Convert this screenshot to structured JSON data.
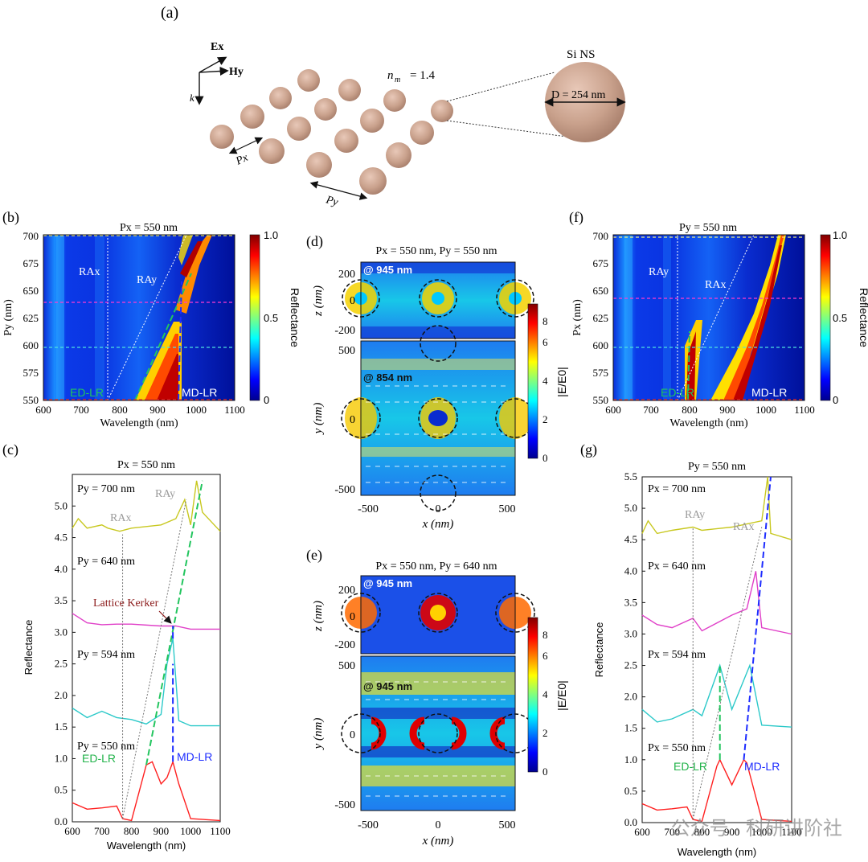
{
  "panel_labels": {
    "a": "(a)",
    "b": "(b)",
    "c": "(c)",
    "d": "(d)",
    "e": "(e)",
    "f": "(f)",
    "g": "(g)"
  },
  "schematic": {
    "ex": "Ex",
    "hy": "Hy",
    "k": "k",
    "px": "Px",
    "py": "Py",
    "nm_label": "n",
    "nm_sub": "m",
    "nm_value": "= 1.4",
    "si_title": "Si NS",
    "diameter": "D = 254 nm"
  },
  "panel_b": {
    "title": "Px = 550 nm",
    "ylabel": "Py (nm)",
    "xlabel": "Wavelength (nm)",
    "yticks": [
      "550",
      "575",
      "600",
      "625",
      "650",
      "675",
      "700"
    ],
    "xticks": [
      "600",
      "700",
      "800",
      "900",
      "1000",
      "1100"
    ],
    "rax": "RAx",
    "ray": "RAy",
    "ed": "ED-LR",
    "md": "MD-LR",
    "cbar_label": "Reflectance",
    "cbar_ticks": [
      "0",
      "0.5",
      "1.0"
    ]
  },
  "panel_f": {
    "title": "Py = 550 nm",
    "ylabel": "Px (nm)",
    "xlabel": "Wavelength (nm)",
    "yticks": [
      "550",
      "575",
      "600",
      "625",
      "650",
      "675",
      "700"
    ],
    "xticks": [
      "600",
      "700",
      "800",
      "900",
      "1000",
      "1100"
    ],
    "ray": "RAy",
    "rax": "RAx",
    "ed": "ED-LR",
    "md": "MD-LR",
    "cbar_label": "Reflectance",
    "cbar_ticks": [
      "0",
      "0.5",
      "1.0"
    ]
  },
  "panel_d": {
    "title": "Px = 550 nm, Py = 550 nm",
    "lambda_top": "@ 945 nm",
    "lambda_bottom": "@ 854 nm",
    "zlabel": "z (nm)",
    "ylabel": "y (nm)",
    "xlabel": "x (nm)",
    "zticks": [
      "200",
      "0",
      "-200"
    ],
    "yticks": [
      "500",
      "0",
      "-500"
    ],
    "xticks": [
      "-500",
      "0",
      "500"
    ],
    "cbar_label": "|E/E0|",
    "cbar_ticks": [
      "0",
      "2",
      "4",
      "6",
      "8"
    ]
  },
  "panel_e": {
    "title": "Px = 550 nm, Py = 640 nm",
    "lambda_top": "@ 945 nm",
    "lambda_bottom": "@ 945 nm",
    "zlabel": "z (nm)",
    "ylabel": "y (nm)",
    "xlabel": "x (nm)",
    "zticks": [
      "200",
      "0",
      "-200"
    ],
    "yticks": [
      "500",
      "0",
      "-500"
    ],
    "xticks": [
      "-500",
      "0",
      "500"
    ],
    "cbar_label": "|E/E0|",
    "cbar_ticks": [
      "0",
      "2",
      "4",
      "6",
      "8"
    ]
  },
  "panel_c": {
    "title": "Px = 550 nm",
    "ylabel": "Reflectance",
    "xlabel": "Wavelength (nm)",
    "curve_labels": [
      "Py = 700 nm",
      "Py = 640 nm",
      "Py = 594 nm",
      "Py = 550 nm"
    ],
    "rax": "RAx",
    "ray": "RAy",
    "kerker": "Lattice Kerker",
    "ed": "ED-LR",
    "md": "MD-LR",
    "yticks": [
      "0.0",
      "0.5",
      "1.0",
      "1.5",
      "2.0",
      "2.5",
      "3.0",
      "3.5",
      "4.0",
      "4.5",
      "5.0"
    ],
    "xticks": [
      "600",
      "700",
      "800",
      "900",
      "1000",
      "1100"
    ]
  },
  "panel_g": {
    "title": "Py = 550 nm",
    "ylabel": "Reflectance",
    "xlabel": "Wavelength (nm)",
    "curve_labels": [
      "Px = 700 nm",
      "Px = 640 nm",
      "Px = 594 nm",
      "Px = 550 nm"
    ],
    "ray": "RAy",
    "rax": "RAx",
    "ed": "ED-LR",
    "md": "MD-LR",
    "yticks": [
      "0.0",
      "0.5",
      "1.0",
      "1.5",
      "2.0",
      "2.5",
      "3.0",
      "3.5",
      "4.0",
      "4.5",
      "5.0",
      "5.5"
    ],
    "xticks": [
      "600",
      "700",
      "800",
      "900",
      "1000",
      "1100"
    ]
  },
  "watermark": "公众号 · 科研讲阶社",
  "chart_data": [
    {
      "id": "b",
      "type": "heatmap",
      "title": "Px = 550 nm",
      "xlabel": "Wavelength (nm)",
      "ylabel": "Py (nm)",
      "xlim": [
        600,
        1100
      ],
      "ylim": [
        550,
        700
      ],
      "colorbar": "Reflectance",
      "clim": [
        0,
        1
      ],
      "features": {
        "RAx_wavelength": 770,
        "RAy_line": [
          [
            770,
            550
          ],
          [
            980,
            700
          ]
        ],
        "ED_LR": [
          [
            840,
            550
          ],
          [
            975,
            690
          ]
        ],
        "MD_LR": [
          [
            945,
            550
          ],
          [
            960,
            700
          ]
        ],
        "dashed_cuts_Py": [
          550,
          594,
          640,
          700
        ]
      }
    },
    {
      "id": "f",
      "type": "heatmap",
      "title": "Py = 550 nm",
      "xlabel": "Wavelength (nm)",
      "ylabel": "Px (nm)",
      "xlim": [
        600,
        1100
      ],
      "ylim": [
        550,
        700
      ],
      "colorbar": "Reflectance",
      "clim": [
        0,
        1
      ],
      "features": {
        "RAy_wavelength": 770,
        "RAx_line": [
          [
            770,
            550
          ],
          [
            980,
            700
          ]
        ],
        "ED_LR": [
          [
            855,
            550
          ],
          [
            865,
            620
          ]
        ],
        "MD_LR": [
          [
            945,
            550
          ],
          [
            1030,
            700
          ]
        ],
        "dashed_cuts_Px": [
          550,
          594,
          640,
          700
        ]
      }
    },
    {
      "id": "c",
      "type": "line",
      "title": "Px = 550 nm",
      "xlabel": "Wavelength (nm)",
      "ylabel": "Reflectance",
      "xlim": [
        600,
        1100
      ],
      "ylim": [
        0,
        5.5
      ],
      "series": [
        {
          "name": "Py = 550 nm",
          "offset": 0,
          "x": [
            600,
            650,
            700,
            750,
            770,
            800,
            850,
            870,
            900,
            920,
            940,
            960,
            1000,
            1100
          ],
          "y": [
            0.3,
            0.2,
            0.22,
            0.25,
            0.05,
            0.02,
            0.9,
            0.95,
            0.6,
            0.7,
            0.95,
            0.6,
            0.05,
            0.02
          ]
        },
        {
          "name": "Py = 594 nm",
          "offset": 1.5,
          "x": [
            600,
            650,
            700,
            750,
            800,
            850,
            900,
            920,
            940,
            960,
            1000,
            1100
          ],
          "y": [
            0.3,
            0.15,
            0.25,
            0.15,
            0.12,
            0.05,
            0.2,
            1.0,
            1.4,
            0.1,
            0.02,
            0.02
          ]
        },
        {
          "name": "Py = 640 nm",
          "offset": 3.0,
          "x": [
            600,
            650,
            700,
            750,
            800,
            900,
            950,
            1000,
            1100
          ],
          "y": [
            0.3,
            0.15,
            0.12,
            0.13,
            0.13,
            0.1,
            0.1,
            0.05,
            0.05
          ]
        },
        {
          "name": "Py = 700 nm",
          "offset": 4.6,
          "x": [
            600,
            620,
            650,
            700,
            720,
            760,
            800,
            900,
            950,
            980,
            1000,
            1020,
            1040,
            1100
          ],
          "y": [
            0.05,
            0.2,
            0.05,
            0.1,
            0.05,
            0.0,
            0.05,
            0.1,
            0.2,
            0.5,
            0.1,
            0.8,
            0.3,
            0.0
          ]
        }
      ]
    },
    {
      "id": "g",
      "type": "line",
      "title": "Py = 550 nm",
      "xlabel": "Wavelength (nm)",
      "ylabel": "Reflectance",
      "xlim": [
        600,
        1100
      ],
      "ylim": [
        0,
        5.5
      ],
      "series": [
        {
          "name": "Px = 550 nm",
          "offset": 0,
          "x": [
            600,
            650,
            700,
            750,
            770,
            800,
            850,
            860,
            900,
            940,
            950,
            1000,
            1100
          ],
          "y": [
            0.3,
            0.2,
            0.22,
            0.25,
            0.05,
            0.02,
            0.9,
            1.0,
            0.6,
            1.0,
            0.95,
            0.05,
            0.02
          ]
        },
        {
          "name": "Px = 594 nm",
          "offset": 1.5,
          "x": [
            600,
            650,
            700,
            770,
            800,
            860,
            900,
            960,
            1000,
            1100
          ],
          "y": [
            0.3,
            0.1,
            0.15,
            0.3,
            0.2,
            1.0,
            0.3,
            1.0,
            0.05,
            0.02
          ]
        },
        {
          "name": "Px = 640 nm",
          "offset": 3.0,
          "x": [
            600,
            650,
            700,
            770,
            800,
            900,
            950,
            980,
            1000,
            1100
          ],
          "y": [
            0.3,
            0.15,
            0.1,
            0.25,
            0.05,
            0.3,
            0.4,
            1.0,
            0.1,
            0.0
          ]
        },
        {
          "name": "Px = 700 nm",
          "offset": 4.5,
          "x": [
            600,
            620,
            650,
            700,
            770,
            800,
            900,
            1000,
            1020,
            1030,
            1100
          ],
          "y": [
            0.1,
            0.3,
            0.1,
            0.15,
            0.2,
            0.15,
            0.2,
            0.3,
            1.0,
            0.1,
            0.0
          ]
        }
      ]
    }
  ]
}
